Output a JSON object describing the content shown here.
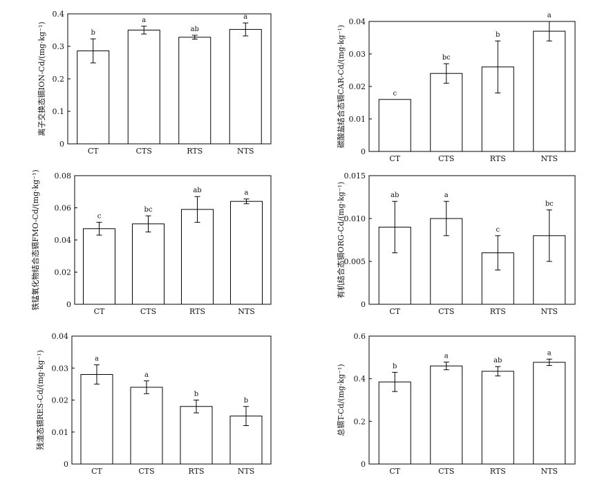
{
  "chart_data": [
    {
      "type": "bar",
      "ylabel": "离子交换态镉ION-Cd/(mg·kg⁻¹)",
      "categories": [
        "CT",
        "CTS",
        "RTS",
        "NTS"
      ],
      "values": [
        0.286,
        0.35,
        0.328,
        0.352
      ],
      "errors": [
        0.037,
        0.012,
        0.006,
        0.02
      ],
      "letters": [
        "b",
        "a",
        "ab",
        "a"
      ],
      "ylim": [
        0,
        0.4
      ],
      "yticks": [
        0,
        0.1,
        0.2,
        0.3,
        0.4
      ],
      "ytick_labels": [
        "0",
        "0.1",
        "0.2",
        "0.3",
        "0.4"
      ]
    },
    {
      "type": "bar",
      "ylabel": "碳酸盐结合态镉CAR-Cd/(mg·kg⁻¹)",
      "categories": [
        "CT",
        "CTS",
        "RTS",
        "NTS"
      ],
      "values": [
        0.016,
        0.024,
        0.026,
        0.037
      ],
      "errors": [
        0,
        0.003,
        0.008,
        0.003
      ],
      "letters": [
        "c",
        "bc",
        "b",
        "a"
      ],
      "ylim": [
        0,
        0.04
      ],
      "yticks": [
        0,
        0.01,
        0.02,
        0.03,
        0.04
      ],
      "ytick_labels": [
        "0",
        "0.01",
        "0.02",
        "0.03",
        "0.04"
      ]
    },
    {
      "type": "bar",
      "ylabel": "铁锰氧化物结合态镉FMO-Cd/(mg·kg⁻¹)",
      "categories": [
        "CT",
        "CTS",
        "RTS",
        "NTS"
      ],
      "values": [
        0.047,
        0.05,
        0.059,
        0.064
      ],
      "errors": [
        0.004,
        0.005,
        0.008,
        0.0015
      ],
      "letters": [
        "c",
        "bc",
        "ab",
        "a"
      ],
      "ylim": [
        0,
        0.08
      ],
      "yticks": [
        0,
        0.02,
        0.04,
        0.06,
        0.08
      ],
      "ytick_labels": [
        "0",
        "0.02",
        "0.04",
        "0.06",
        "0.08"
      ]
    },
    {
      "type": "bar",
      "ylabel": "有机结合态镉ORG-Cd/(mg·kg⁻¹)",
      "categories": [
        "CT",
        "CTS",
        "RTS",
        "NTS"
      ],
      "values": [
        0.009,
        0.01,
        0.006,
        0.008
      ],
      "errors": [
        0.003,
        0.002,
        0.002,
        0.003
      ],
      "letters": [
        "ab",
        "a",
        "c",
        "bc"
      ],
      "ylim": [
        0,
        0.015
      ],
      "yticks": [
        0,
        0.005,
        0.01,
        0.015
      ],
      "ytick_labels": [
        "0",
        "0.005",
        "0.010",
        "0.015"
      ]
    },
    {
      "type": "bar",
      "ylabel": "残渣态镉RES-Cd/(mg·kg⁻¹)",
      "categories": [
        "CT",
        "CTS",
        "RTS",
        "NTS"
      ],
      "values": [
        0.028,
        0.024,
        0.018,
        0.015
      ],
      "errors": [
        0.003,
        0.002,
        0.002,
        0.003
      ],
      "letters": [
        "a",
        "a",
        "b",
        "b"
      ],
      "ylim": [
        0,
        0.04
      ],
      "yticks": [
        0,
        0.01,
        0.02,
        0.03,
        0.04
      ],
      "ytick_labels": [
        "0",
        "0.01",
        "0.02",
        "0.03",
        "0.04"
      ]
    },
    {
      "type": "bar",
      "ylabel": "总镉T-Cd/(mg·kg⁻¹)",
      "categories": [
        "CT",
        "CTS",
        "RTS",
        "NTS"
      ],
      "values": [
        0.385,
        0.46,
        0.435,
        0.477
      ],
      "errors": [
        0.045,
        0.018,
        0.022,
        0.015
      ],
      "letters": [
        "b",
        "a",
        "ab",
        "a"
      ],
      "ylim": [
        0,
        0.6
      ],
      "yticks": [
        0,
        0.2,
        0.4,
        0.6
      ],
      "ytick_labels": [
        "0",
        "0.2",
        "0.4",
        "0.6"
      ]
    }
  ]
}
